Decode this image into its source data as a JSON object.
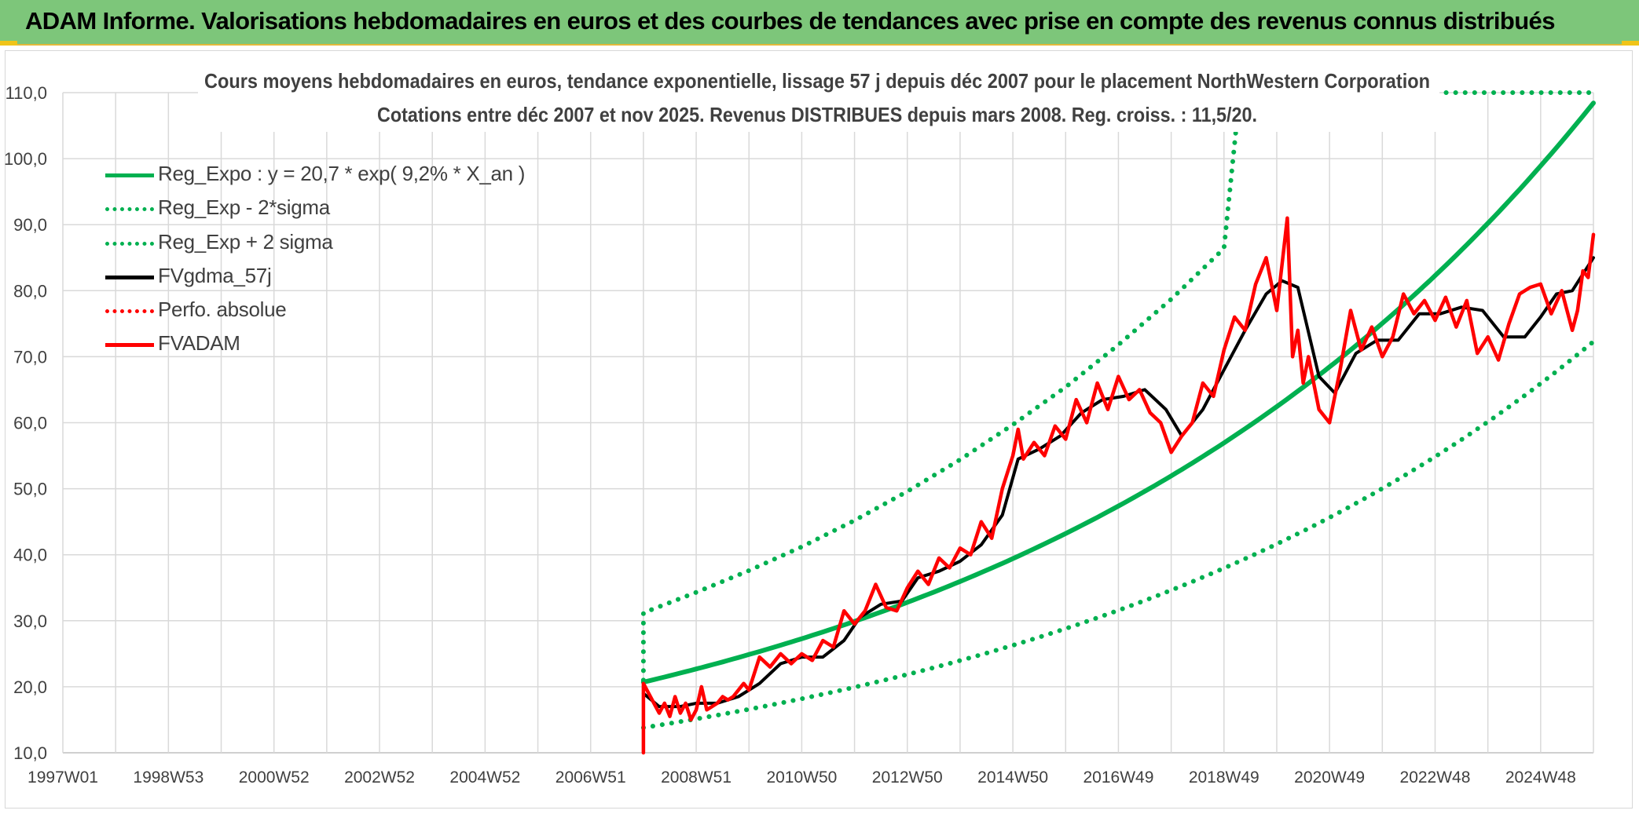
{
  "header": {
    "title": "ADAM Informe. Valorisations hebdomadaires en euros et des courbes de tendances avec prise en compte des revenus connus distribués"
  },
  "legend": {
    "items": [
      {
        "label": "Reg_Expo : y = 20,7 * exp( 9,2% *  X_an )",
        "color": "#00b050",
        "style": "solid"
      },
      {
        "label": "Reg_Exp - 2*sigma",
        "color": "#00b050",
        "style": "dotted"
      },
      {
        "label": "Reg_Exp + 2 sigma",
        "color": "#00b050",
        "style": "dotted"
      },
      {
        "label": "FVgdma_57j",
        "color": "#000000",
        "style": "solid"
      },
      {
        "label": "Perfo. absolue",
        "color": "#ff0000",
        "style": "dotted"
      },
      {
        "label": "FVADAM",
        "color": "#ff0000",
        "style": "solid"
      }
    ]
  },
  "chart_data": {
    "type": "line",
    "title": "Cours moyens hebdomadaires en euros, tendance exponentielle, lissage 57 j depuis déc 2007 pour le placement NorthWestern Corporation",
    "subtitle": "Cotations entre déc 2007 et nov 2025. Revenus DISTRIBUES depuis mars 2008. Reg. croiss. : 11,5/20.",
    "xlabel": "",
    "ylabel": "",
    "x_range": [
      1997.0,
      2026.0
    ],
    "ylim": [
      10,
      110
    ],
    "y_ticks": [
      "10,0",
      "20,0",
      "30,0",
      "40,0",
      "50,0",
      "60,0",
      "70,0",
      "80,0",
      "90,0",
      "100,0",
      "110,0"
    ],
    "x_ticks": [
      {
        "label": "1997W01",
        "x": 1997.0
      },
      {
        "label": "1998W53",
        "x": 1999.0
      },
      {
        "label": "2000W52",
        "x": 2001.0
      },
      {
        "label": "2002W52",
        "x": 2003.0
      },
      {
        "label": "2004W52",
        "x": 2005.0
      },
      {
        "label": "2006W51",
        "x": 2007.0
      },
      {
        "label": "2008W51",
        "x": 2009.0
      },
      {
        "label": "2010W50",
        "x": 2011.0
      },
      {
        "label": "2012W50",
        "x": 2013.0
      },
      {
        "label": "2014W50",
        "x": 2015.0
      },
      {
        "label": "2016W49",
        "x": 2017.0
      },
      {
        "label": "2018W49",
        "x": 2019.0
      },
      {
        "label": "2020W49",
        "x": 2021.0
      },
      {
        "label": "2022W48",
        "x": 2023.0
      },
      {
        "label": "2024W48",
        "x": 2025.0
      }
    ],
    "grid": true,
    "legend_position": "top-left",
    "regression": {
      "a": 20.7,
      "rate": 0.092,
      "x_start": 2008.0,
      "x_end": 2026.0
    },
    "series": [
      {
        "name": "Reg_Expo : y = 20,7 * exp( 9,2% *  X_an )",
        "color": "#00b050",
        "style": "solid",
        "x": [
          2008.0,
          2009.0,
          2010.0,
          2011.0,
          2012.0,
          2013.0,
          2014.0,
          2015.0,
          2016.0,
          2017.0,
          2018.0,
          2019.0,
          2020.0,
          2021.0,
          2022.0,
          2023.0,
          2024.0,
          2025.0,
          2026.0
        ],
        "y": [
          20.7,
          22.7,
          24.9,
          27.3,
          29.9,
          32.8,
          36.0,
          39.5,
          43.3,
          47.5,
          52.1,
          57.2,
          62.7,
          68.8,
          75.5,
          82.8,
          90.8,
          99.6,
          109.3
        ]
      },
      {
        "name": "Reg_Exp - 2*sigma",
        "color": "#00b050",
        "style": "dotted",
        "x": [
          2008.0,
          2009.0,
          2010.0,
          2011.0,
          2012.0,
          2013.0,
          2014.0,
          2015.0,
          2016.0,
          2017.0,
          2018.0,
          2019.0,
          2020.0,
          2021.0,
          2022.0,
          2023.0,
          2024.0,
          2025.0,
          2026.0
        ],
        "y": [
          13.8,
          15.1,
          16.6,
          18.2,
          19.9,
          21.9,
          24.0,
          26.3,
          28.9,
          31.7,
          34.7,
          38.1,
          41.8,
          45.9,
          50.3,
          55.2,
          60.5,
          66.4,
          72.8
        ]
      },
      {
        "name": "Reg_Exp + 2 sigma",
        "color": "#00b050",
        "style": "dotted",
        "x": [
          2008.0,
          2008.0,
          2009.0,
          2010.0,
          2011.0,
          2012.0,
          2013.0,
          2014.0,
          2015.0,
          2016.0,
          2017.0,
          2018.0,
          2019.0,
          2019.3,
          2024.3,
          2026.0
        ],
        "y": [
          21.0,
          31.2,
          34.3,
          37.6,
          41.2,
          45.2,
          49.6,
          54.4,
          59.7,
          65.4,
          71.8,
          78.7,
          86.4,
          110.0,
          110.0,
          110.0
        ]
      },
      {
        "name": "FVgdma_57j",
        "color": "#000000",
        "style": "solid",
        "x": [
          2008.0,
          2008.3,
          2008.7,
          2009.0,
          2009.4,
          2009.8,
          2010.2,
          2010.6,
          2011.0,
          2011.4,
          2011.8,
          2012.1,
          2012.5,
          2012.9,
          2013.2,
          2013.6,
          2014.0,
          2014.4,
          2014.8,
          2015.1,
          2015.5,
          2015.9,
          2016.3,
          2016.7,
          2017.1,
          2017.5,
          2017.9,
          2018.2,
          2018.6,
          2019.0,
          2019.4,
          2019.8,
          2020.1,
          2020.4,
          2020.8,
          2021.1,
          2021.5,
          2021.9,
          2022.3,
          2022.7,
          2023.1,
          2023.5,
          2023.9,
          2024.3,
          2024.7,
          2025.0,
          2025.3,
          2025.6,
          2026.0
        ],
        "y": [
          19.0,
          17.0,
          17.0,
          17.5,
          17.5,
          18.5,
          20.5,
          23.5,
          24.5,
          24.5,
          27.0,
          30.5,
          32.5,
          33.0,
          36.5,
          37.5,
          39.0,
          41.5,
          46.0,
          54.5,
          56.0,
          58.0,
          61.5,
          63.5,
          64.0,
          65.0,
          62.0,
          58.0,
          62.0,
          68.0,
          74.0,
          79.5,
          81.5,
          80.5,
          67.0,
          64.5,
          70.5,
          72.5,
          72.5,
          76.5,
          76.5,
          77.5,
          77.0,
          73.0,
          73.0,
          76.0,
          79.5,
          80.0,
          85.0
        ]
      },
      {
        "name": "Perfo. absolue",
        "color": "#ff0000",
        "style": "dotted",
        "x": [],
        "y": []
      },
      {
        "name": "FVADAM",
        "color": "#ff0000",
        "style": "solid",
        "x": [
          2008.0,
          2008.0,
          2008.1,
          2008.2,
          2008.3,
          2008.4,
          2008.5,
          2008.6,
          2008.7,
          2008.8,
          2008.9,
          2009.0,
          2009.1,
          2009.2,
          2009.3,
          2009.4,
          2009.5,
          2009.6,
          2009.7,
          2009.8,
          2009.9,
          2010.0,
          2010.1,
          2010.2,
          2010.4,
          2010.6,
          2010.8,
          2011.0,
          2011.2,
          2011.4,
          2011.6,
          2011.8,
          2012.0,
          2012.2,
          2012.4,
          2012.6,
          2012.8,
          2013.0,
          2013.2,
          2013.4,
          2013.6,
          2013.8,
          2014.0,
          2014.2,
          2014.4,
          2014.6,
          2014.8,
          2015.0,
          2015.1,
          2015.2,
          2015.4,
          2015.6,
          2015.8,
          2016.0,
          2016.2,
          2016.4,
          2016.6,
          2016.8,
          2017.0,
          2017.2,
          2017.4,
          2017.6,
          2017.8,
          2018.0,
          2018.2,
          2018.4,
          2018.6,
          2018.8,
          2019.0,
          2019.2,
          2019.4,
          2019.6,
          2019.8,
          2020.0,
          2020.1,
          2020.2,
          2020.3,
          2020.4,
          2020.5,
          2020.6,
          2020.8,
          2021.0,
          2021.2,
          2021.4,
          2021.6,
          2021.8,
          2022.0,
          2022.2,
          2022.4,
          2022.6,
          2022.8,
          2023.0,
          2023.2,
          2023.4,
          2023.6,
          2023.8,
          2024.0,
          2024.2,
          2024.4,
          2024.6,
          2024.8,
          2025.0,
          2025.2,
          2025.4,
          2025.6,
          2025.7,
          2025.8,
          2025.9,
          2026.0
        ],
        "y": [
          10.0,
          20.5,
          19.0,
          17.5,
          16.0,
          17.5,
          15.5,
          18.5,
          16.0,
          17.5,
          15.0,
          16.5,
          20.0,
          16.5,
          17.0,
          17.5,
          18.5,
          18.0,
          18.5,
          19.5,
          20.5,
          19.5,
          22.0,
          24.5,
          23.0,
          25.0,
          23.5,
          25.0,
          24.0,
          27.0,
          26.0,
          31.5,
          29.5,
          31.5,
          35.5,
          32.0,
          31.5,
          35.0,
          37.5,
          35.5,
          39.5,
          38.0,
          41.0,
          40.0,
          45.0,
          42.5,
          50.0,
          55.0,
          59.0,
          54.5,
          57.0,
          55.0,
          59.5,
          57.5,
          63.5,
          60.0,
          66.0,
          62.0,
          67.0,
          63.5,
          65.0,
          61.5,
          60.0,
          55.5,
          58.0,
          60.0,
          66.0,
          64.0,
          71.0,
          76.0,
          74.0,
          81.0,
          85.0,
          77.0,
          84.0,
          91.0,
          70.0,
          74.0,
          66.0,
          70.0,
          62.0,
          60.0,
          68.0,
          77.0,
          71.0,
          74.5,
          70.0,
          73.0,
          79.5,
          76.5,
          78.5,
          75.5,
          79.0,
          74.5,
          78.5,
          70.5,
          73.0,
          69.5,
          75.0,
          79.5,
          80.5,
          81.0,
          76.5,
          80.0,
          74.0,
          77.0,
          83.0,
          82.0,
          88.5
        ]
      }
    ]
  }
}
